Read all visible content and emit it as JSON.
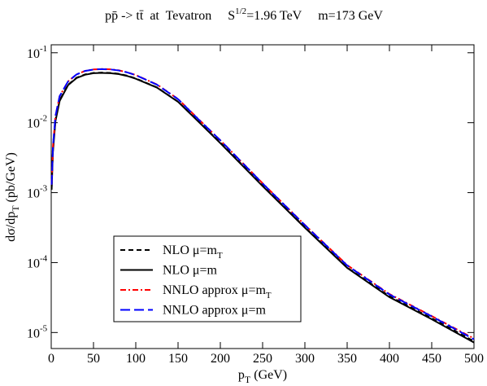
{
  "chart_data": {
    "type": "line",
    "title": {
      "process": "pp̄ -> tt̄  at  Tevatron",
      "energy": "S",
      "energy_sup": "1/2",
      "energy_value": "=1.96 TeV",
      "mass": "m=173 GeV"
    },
    "x_label": {
      "text": "p",
      "sub": "T",
      "unit": " (GeV)"
    },
    "y_label": {
      "text": "dσ/dp",
      "sub": "T",
      "unit": " (pb/GeV)"
    },
    "xlim": [
      0,
      500
    ],
    "xticks": [
      0,
      50,
      100,
      150,
      200,
      250,
      300,
      350,
      400,
      450,
      500
    ],
    "ylim": [
      5.9e-06,
      0.13
    ],
    "log_y": true,
    "yticks": [
      {
        "value": 0.1,
        "label": "10",
        "exponent": "-1"
      },
      {
        "value": 0.01,
        "label": "10",
        "exponent": "-2"
      },
      {
        "value": 0.001,
        "label": "10",
        "exponent": "-3"
      },
      {
        "value": 0.0001,
        "label": "10",
        "exponent": "-4"
      },
      {
        "value": 1e-05,
        "label": "10",
        "exponent": "-5"
      }
    ],
    "legend": "bottom-left",
    "x": [
      0.5,
      2,
      5,
      10,
      20,
      30,
      40,
      50,
      60,
      70,
      80,
      90,
      100,
      125,
      150,
      175,
      200,
      250,
      300,
      350,
      400,
      450,
      500
    ],
    "series": [
      {
        "name": "NLO  μ=m",
        "subscript": "T",
        "color": "#000000",
        "dash": "6,4",
        "values": [
          0.0012,
          0.004,
          0.011,
          0.021,
          0.035,
          0.044,
          0.049,
          0.0515,
          0.052,
          0.0515,
          0.05,
          0.047,
          0.043,
          0.032,
          0.02,
          0.0102,
          0.0052,
          0.00126,
          0.00032,
          8.5e-05,
          3.3e-05,
          1.6e-05,
          7.5e-06
        ]
      },
      {
        "name": "NLO  μ=m",
        "color": "#000000",
        "dash": "none",
        "values": [
          0.0011,
          0.0038,
          0.0105,
          0.0205,
          0.0345,
          0.0435,
          0.0485,
          0.051,
          0.0515,
          0.051,
          0.0495,
          0.0465,
          0.0425,
          0.0318,
          0.0199,
          0.0101,
          0.0051,
          0.00124,
          0.000315,
          8.4e-05,
          3.2e-05,
          1.55e-05,
          7.2e-06
        ]
      },
      {
        "name": "NNLO approx μ=m",
        "subscript": "T",
        "color": "#ff0000",
        "dash": "7,3,2,3",
        "values": [
          0.0013,
          0.0045,
          0.0125,
          0.024,
          0.039,
          0.049,
          0.055,
          0.0578,
          0.0585,
          0.058,
          0.056,
          0.0525,
          0.048,
          0.0352,
          0.0218,
          0.011,
          0.0056,
          0.00136,
          0.000345,
          9.2e-05,
          3.55e-05,
          1.72e-05,
          8.2e-06
        ]
      },
      {
        "name": "NNLO approx μ=m",
        "color": "#0000ff",
        "dash": "12,5",
        "values": [
          0.0013,
          0.0045,
          0.0125,
          0.024,
          0.039,
          0.049,
          0.055,
          0.0576,
          0.0583,
          0.0578,
          0.0558,
          0.0523,
          0.0478,
          0.035,
          0.0217,
          0.0109,
          0.0056,
          0.00135,
          0.000343,
          9.1e-05,
          3.5e-05,
          1.7e-05,
          8e-06
        ]
      }
    ]
  }
}
